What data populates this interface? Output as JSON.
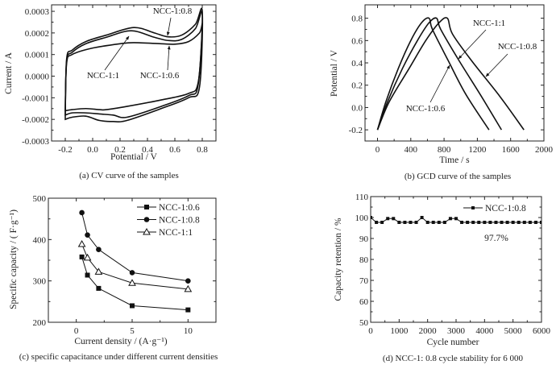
{
  "chart_data": [
    {
      "type": "line",
      "id": "a",
      "title": "",
      "caption": "(a) CV curve of the samples",
      "xlabel": "Potential / V",
      "ylabel": "Current / A",
      "xlim": [
        -0.3,
        0.9
      ],
      "ylim": [
        -0.0003,
        0.00033
      ],
      "xticks": [
        "-0.2",
        "0.0",
        "0.2",
        "0.4",
        "0.6",
        "0.8"
      ],
      "xtick_values": [
        -0.2,
        0.0,
        0.2,
        0.4,
        0.6,
        0.8
      ],
      "yticks": [
        "0.0003",
        "0.0002",
        "0.0001",
        "0.0000",
        "-0.0001",
        "-0.0002",
        "-0.0003"
      ],
      "ytick_values": [
        0.0003,
        0.0002,
        0.0001,
        0.0,
        -0.0001,
        -0.0002,
        -0.0003
      ],
      "series": [
        {
          "name": "NCC-1:0.8",
          "upper": [
            [
              -0.2,
              -0.00018
            ],
            [
              -0.19,
              8e-05
            ],
            [
              -0.15,
              0.00012
            ],
            [
              -0.05,
              0.00016
            ],
            [
              0.1,
              0.00019
            ],
            [
              0.3,
              0.000225
            ],
            [
              0.45,
              0.0002
            ],
            [
              0.55,
              0.000182
            ],
            [
              0.65,
              0.00019
            ],
            [
              0.75,
              0.00024
            ],
            [
              0.8,
              0.0003
            ]
          ],
          "lower": [
            [
              0.8,
              0.0003
            ],
            [
              0.78,
              -5e-05
            ],
            [
              0.7,
              -0.0001
            ],
            [
              0.5,
              -0.00015
            ],
            [
              0.25,
              -0.000205
            ],
            [
              0.15,
              -0.00021
            ],
            [
              0.05,
              -0.000205
            ],
            [
              -0.05,
              -0.000185
            ],
            [
              -0.15,
              -0.00019
            ],
            [
              -0.2,
              -0.0002
            ]
          ]
        },
        {
          "name": "NCC-1:1",
          "upper": [
            [
              -0.2,
              -0.00017
            ],
            [
              -0.19,
              7e-05
            ],
            [
              -0.15,
              0.00011
            ],
            [
              -0.05,
              0.00015
            ],
            [
              0.1,
              0.00018
            ],
            [
              0.28,
              0.00021
            ],
            [
              0.45,
              0.00018
            ],
            [
              0.55,
              0.000165
            ],
            [
              0.65,
              0.00017
            ],
            [
              0.75,
              0.00022
            ],
            [
              0.8,
              0.00029
            ]
          ],
          "lower": [
            [
              0.8,
              0.00029
            ],
            [
              0.77,
              -4e-05
            ],
            [
              0.7,
              -9e-05
            ],
            [
              0.5,
              -0.00014
            ],
            [
              0.25,
              -0.00019
            ],
            [
              0.15,
              -0.00018
            ],
            [
              0.05,
              -0.000175
            ],
            [
              -0.05,
              -0.00017
            ],
            [
              -0.15,
              -0.00017
            ],
            [
              -0.2,
              -0.00018
            ]
          ]
        },
        {
          "name": "NCC-1:0.6",
          "upper": [
            [
              -0.2,
              -0.00016
            ],
            [
              -0.19,
              6e-05
            ],
            [
              -0.15,
              0.0001
            ],
            [
              0.0,
              0.00013
            ],
            [
              0.2,
              0.00015
            ],
            [
              0.3,
              0.000155
            ],
            [
              0.5,
              0.00015
            ],
            [
              0.6,
              0.000148
            ],
            [
              0.7,
              0.00016
            ],
            [
              0.78,
              0.0002
            ],
            [
              0.8,
              0.00023
            ]
          ],
          "lower": [
            [
              0.8,
              0.00023
            ],
            [
              0.77,
              -3e-05
            ],
            [
              0.7,
              -8e-05
            ],
            [
              0.5,
              -0.00011
            ],
            [
              0.25,
              -0.00014
            ],
            [
              0.1,
              -0.000155
            ],
            [
              0.05,
              -0.000155
            ],
            [
              -0.05,
              -0.00015
            ],
            [
              -0.15,
              -0.000155
            ],
            [
              -0.2,
              -0.00016
            ]
          ]
        }
      ],
      "annotations": [
        {
          "text": "NCC-1:0.8",
          "points_to": [
            0.54,
            0.000182
          ]
        },
        {
          "text": "NCC-1:1",
          "points_to": [
            0.26,
            0.000205
          ]
        },
        {
          "text": "NCC-1:0.6",
          "points_to": [
            0.56,
            0.000148
          ]
        }
      ]
    },
    {
      "type": "line",
      "id": "b",
      "caption": "(b) GCD curve of the samples",
      "xlabel": "Time / s",
      "ylabel": "Potential / V",
      "xlim": [
        -150,
        2000
      ],
      "ylim": [
        -0.3,
        0.92
      ],
      "xticks": [
        "0",
        "400",
        "800",
        "1200",
        "1600",
        "2000"
      ],
      "xtick_values": [
        0,
        400,
        800,
        1200,
        1600,
        2000
      ],
      "yticks": [
        "0.8",
        "0.6",
        "0.4",
        "0.2",
        "0.0",
        "-0.2"
      ],
      "ytick_values": [
        0.8,
        0.6,
        0.4,
        0.2,
        0.0,
        -0.2
      ],
      "series": [
        {
          "name": "NCC-1:0.6",
          "points": [
            [
              0,
              -0.2
            ],
            [
              100,
              0.05
            ],
            [
              250,
              0.35
            ],
            [
              400,
              0.6
            ],
            [
              530,
              0.76
            ],
            [
              620,
              0.8
            ],
            [
              660,
              0.7
            ],
            [
              850,
              0.42
            ],
            [
              1060,
              0.12
            ],
            [
              1340,
              -0.2
            ]
          ]
        },
        {
          "name": "NCC-1:1",
          "points": [
            [
              0,
              -0.2
            ],
            [
              120,
              0.05
            ],
            [
              300,
              0.35
            ],
            [
              480,
              0.6
            ],
            [
              620,
              0.76
            ],
            [
              710,
              0.8
            ],
            [
              760,
              0.7
            ],
            [
              980,
              0.42
            ],
            [
              1240,
              0.11
            ],
            [
              1490,
              -0.2
            ]
          ]
        },
        {
          "name": "NCC-1:0.8",
          "points": [
            [
              0,
              -0.2
            ],
            [
              140,
              0.05
            ],
            [
              380,
              0.35
            ],
            [
              580,
              0.6
            ],
            [
              740,
              0.76
            ],
            [
              840,
              0.8
            ],
            [
              900,
              0.66
            ],
            [
              1130,
              0.42
            ],
            [
              1470,
              0.1
            ],
            [
              1760,
              -0.2
            ]
          ]
        }
      ],
      "annotations": [
        {
          "text": "NCC-1:1",
          "points_to": [
            940,
            0.42
          ]
        },
        {
          "text": "NCC-1:0.8",
          "points_to": [
            1280,
            0.27
          ]
        },
        {
          "text": "NCC-1:0.6",
          "points_to": [
            830,
            0.37
          ]
        }
      ]
    },
    {
      "type": "line",
      "id": "c",
      "caption": "(c) specific capacitance under different current densities",
      "xlabel": "Current density / (A·g⁻¹)",
      "ylabel": "Specific capacity / ( F·g⁻¹)",
      "xlim": [
        -2.5,
        12.5
      ],
      "ylim": [
        200,
        500
      ],
      "xticks": [
        "0",
        "5",
        "10"
      ],
      "xtick_values": [
        0,
        5,
        10
      ],
      "yticks": [
        "500",
        "400",
        "300",
        "200"
      ],
      "ytick_values": [
        500,
        400,
        300,
        200
      ],
      "legend": "top-right",
      "series": [
        {
          "name": "NCC-1:0.6",
          "marker": "square",
          "x": [
            0.5,
            1,
            2,
            5,
            10
          ],
          "values": [
            358,
            314,
            282,
            240,
            230
          ]
        },
        {
          "name": "NCC-1:0.8",
          "marker": "circle",
          "x": [
            0.5,
            1,
            2,
            5,
            10
          ],
          "values": [
            465,
            411,
            376,
            320,
            300
          ]
        },
        {
          "name": "NCC-1:1",
          "marker": "open-triangle",
          "x": [
            0.5,
            1,
            2,
            5,
            10
          ],
          "values": [
            389,
            356,
            322,
            295,
            280
          ]
        }
      ]
    },
    {
      "type": "line",
      "id": "d",
      "caption": "(d) NCC-1: 0.8 cycle stability for 6 000",
      "xlabel": "Cycle number",
      "ylabel": "Capacity retention / %",
      "xlim": [
        0,
        6000
      ],
      "ylim": [
        50,
        110
      ],
      "xticks": [
        "0",
        "1000",
        "2000",
        "3000",
        "4000",
        "5000",
        "6000"
      ],
      "xtick_values": [
        0,
        1000,
        2000,
        3000,
        4000,
        5000,
        6000
      ],
      "yticks": [
        "110",
        "100",
        "90",
        "80",
        "70",
        "60",
        "50"
      ],
      "ytick_values": [
        110,
        100,
        90,
        80,
        70,
        60,
        50
      ],
      "legend": "top-right",
      "annotation": "97.7%",
      "series": [
        {
          "name": "NCC-1:0.8",
          "marker": "square",
          "x": [
            0,
            200,
            400,
            600,
            800,
            1000,
            1200,
            1400,
            1600,
            1800,
            2000,
            2200,
            2400,
            2600,
            2800,
            3000,
            3200,
            3400,
            3600,
            3800,
            4000,
            4200,
            4400,
            4600,
            4800,
            5000,
            5200,
            5400,
            5600,
            5800,
            6000
          ],
          "values": [
            100,
            97.7,
            97.7,
            99.5,
            99.5,
            97.7,
            97.7,
            97.7,
            97.7,
            100,
            97.7,
            97.7,
            97.7,
            97.7,
            99.5,
            99.5,
            97.7,
            97.7,
            97.7,
            97.7,
            97.7,
            97.7,
            97.7,
            97.7,
            97.7,
            97.7,
            97.7,
            97.7,
            97.7,
            97.7,
            97.7
          ]
        }
      ]
    }
  ]
}
